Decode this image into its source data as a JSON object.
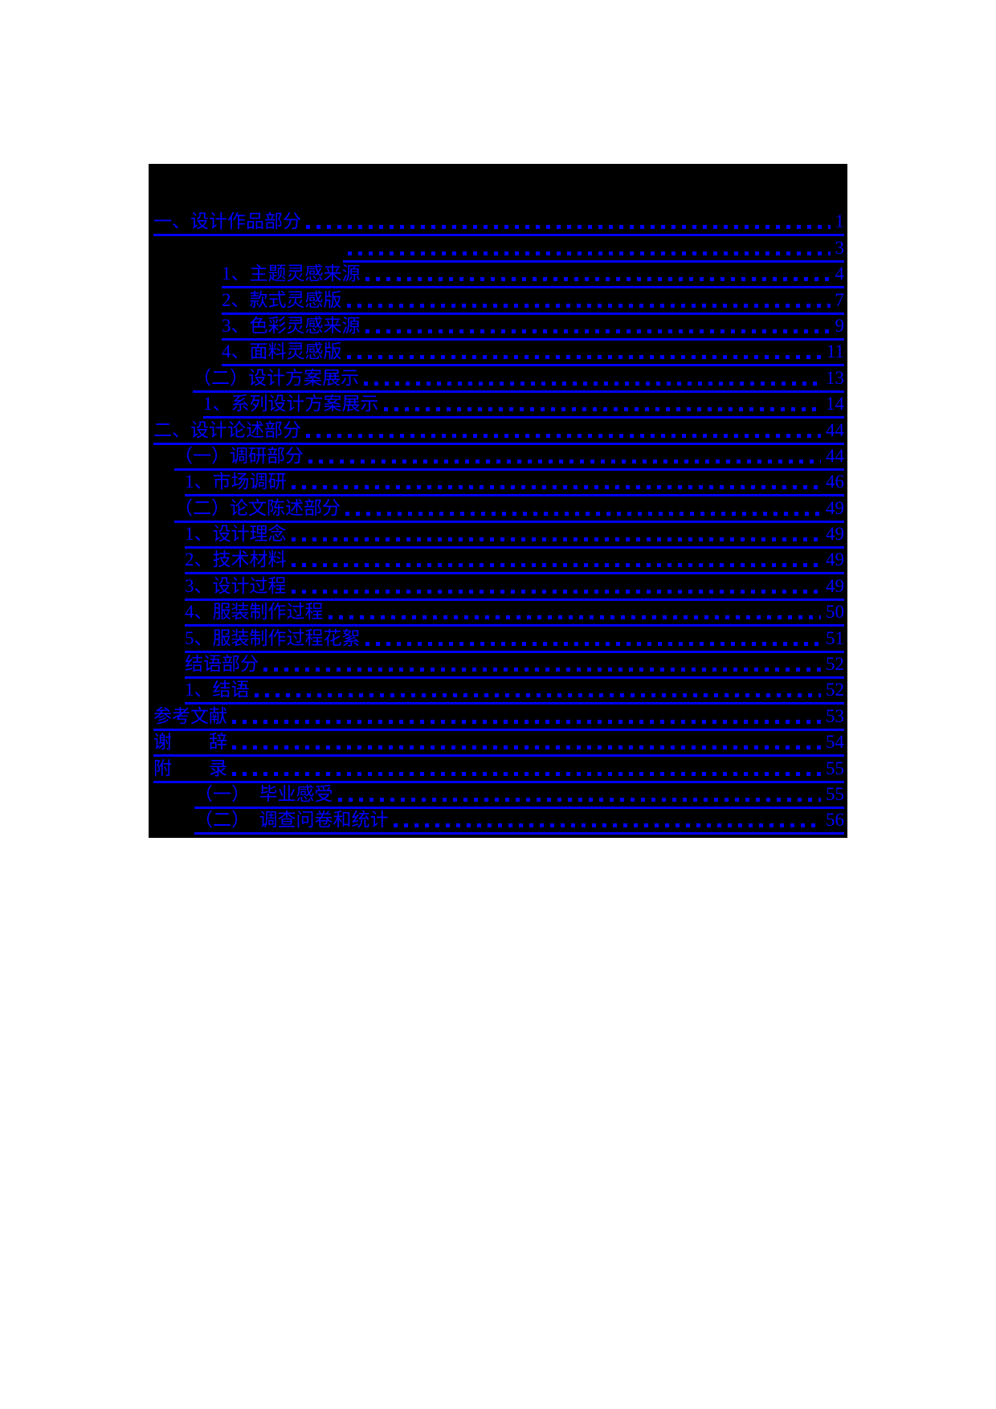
{
  "document": {
    "type": "table-of-contents",
    "colors": {
      "page_background": "#ffffff",
      "panel_background": "#000000",
      "link_color": "#0000ff"
    },
    "toc": {
      "entries": [
        {
          "label": "一、设计作品部分",
          "page": "1",
          "indent": 6
        },
        {
          "label": "",
          "page": "3",
          "indent": 242
        },
        {
          "label": "1、主题灵感来源",
          "page": "4",
          "indent": 91
        },
        {
          "label": "2、款式灵感版",
          "page": "7",
          "indent": 91
        },
        {
          "label": "3、色彩灵感来源",
          "page": "9",
          "indent": 91
        },
        {
          "label": "4、面料灵感版",
          "page": "11",
          "indent": 91
        },
        {
          "label": "（二）设计方案展示",
          "page": "13",
          "indent": 55
        },
        {
          "label": "1、系列设计方案展示",
          "page": "14",
          "indent": 68
        },
        {
          "label": "二、设计论述部分",
          "page": "44",
          "indent": 6
        },
        {
          "label": "（一）调研部分",
          "page": "44",
          "indent": 32
        },
        {
          "label": "1、市场调研",
          "page": "46",
          "indent": 45
        },
        {
          "label": "（二）论文陈述部分",
          "page": "49",
          "indent": 32
        },
        {
          "label": "1、设计理念",
          "page": "49",
          "indent": 45
        },
        {
          "label": "2、技术材料",
          "page": "49",
          "indent": 45
        },
        {
          "label": "3、设计过程",
          "page": "49",
          "indent": 45
        },
        {
          "label": "4、服装制作过程",
          "page": "50",
          "indent": 45
        },
        {
          "label": "5、服装制作过程花絮",
          "page": "51",
          "indent": 45
        },
        {
          "label": "结语部分",
          "page": "52",
          "indent": 45
        },
        {
          "label": "1、结语",
          "page": "52",
          "indent": 45
        },
        {
          "label": "参考文献",
          "page": "53",
          "indent": 6
        },
        {
          "label": "谢　　辞",
          "page": "54",
          "indent": 6
        },
        {
          "label": "附　　录",
          "page": "55",
          "indent": 6
        },
        {
          "label": "（一）　毕业感受",
          "page": "55",
          "indent": 57
        },
        {
          "label": "（二）　调查问卷和统计",
          "page": "56",
          "indent": 57
        }
      ]
    }
  }
}
